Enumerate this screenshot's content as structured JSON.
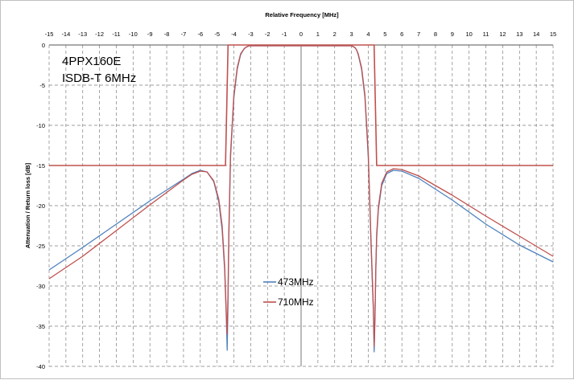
{
  "chart_data": {
    "type": "line",
    "title": "",
    "xlabel": "Relative Frequency [MHz]",
    "ylabel": "Attenuation / Return loss [dB]",
    "xlim": [
      -15,
      15
    ],
    "ylim": [
      -40,
      0
    ],
    "x_ticks": [
      "-15",
      "-14",
      "-13",
      "-12",
      "-11",
      "-10",
      "-9",
      "-8",
      "-7",
      "-6",
      "-5",
      "-4",
      "-3",
      "-2",
      "-1",
      "0",
      "1",
      "2",
      "3",
      "4",
      "5",
      "6",
      "7",
      "8",
      "9",
      "10",
      "11",
      "12",
      "13",
      "14",
      "15"
    ],
    "y_ticks": [
      "0",
      "-5",
      "-10",
      "-15",
      "-20",
      "-25",
      "-30",
      "-35",
      "-40"
    ],
    "grid": true,
    "x_axis_position": "top",
    "annotations": [
      "4PPX160E",
      "ISDB-T 6MHz"
    ],
    "legend_position": "bottom-center",
    "colors": {
      "s473": "#4f81bd",
      "s710": "#c0504d",
      "mask": "#c0504d",
      "grid": "#7f7f7f"
    },
    "series": [
      {
        "name": "473MHz",
        "x": [
          -15,
          -13,
          -11,
          -9,
          -7,
          -6.5,
          -6,
          -5.6,
          -5.2,
          -4.9,
          -4.7,
          -4.55,
          -4.45,
          -4.4,
          -4.35,
          -4.3,
          -4.2,
          -4.0,
          -3.8,
          -3.6,
          -3.4,
          -3.3,
          -3.2,
          -3.1,
          -3.0,
          -2.8,
          -2.0,
          -1.0,
          0,
          1.0,
          2.0,
          2.8,
          3.0,
          3.1,
          3.2,
          3.3,
          3.4,
          3.6,
          3.8,
          4.0,
          4.15,
          4.3,
          4.35,
          4.4,
          4.45,
          4.5,
          4.6,
          4.8,
          5.1,
          5.5,
          6.0,
          7,
          9,
          11,
          13,
          15
        ],
        "y": [
          -28.0,
          -25.2,
          -22.3,
          -19.4,
          -16.7,
          -16.0,
          -15.6,
          -15.8,
          -17.0,
          -19.5,
          -23.0,
          -28.0,
          -34.0,
          -38.0,
          -32.0,
          -24.0,
          -14.0,
          -6.5,
          -3.0,
          -1.2,
          -0.5,
          -0.3,
          -0.2,
          -0.1,
          -0.1,
          -0.1,
          -0.1,
          -0.1,
          -0.1,
          -0.1,
          -0.1,
          -0.1,
          -0.1,
          -0.2,
          -0.3,
          -0.6,
          -1.2,
          -3.0,
          -6.5,
          -14.0,
          -24.0,
          -33.0,
          -38.2,
          -34.0,
          -28.0,
          -24.0,
          -20.5,
          -17.5,
          -16.0,
          -15.6,
          -15.7,
          -16.6,
          -19.3,
          -22.3,
          -24.9,
          -27.0
        ]
      },
      {
        "name": "710MHz",
        "x": [
          -15,
          -13,
          -11,
          -9,
          -7,
          -6.5,
          -6,
          -5.6,
          -5.2,
          -4.9,
          -4.7,
          -4.55,
          -4.45,
          -4.4,
          -4.35,
          -4.3,
          -4.2,
          -4.0,
          -3.8,
          -3.6,
          -3.4,
          -3.3,
          -3.2,
          -3.1,
          -3.0,
          -2.8,
          -2.0,
          -1.0,
          0,
          1.0,
          2.0,
          2.8,
          3.0,
          3.1,
          3.2,
          3.3,
          3.4,
          3.6,
          3.8,
          4.0,
          4.15,
          4.3,
          4.35,
          4.4,
          4.45,
          4.5,
          4.6,
          4.8,
          5.1,
          5.5,
          6.0,
          7,
          9,
          11,
          13,
          15
        ],
        "y": [
          -29.1,
          -26.3,
          -23.1,
          -19.9,
          -16.8,
          -16.1,
          -15.7,
          -15.8,
          -16.9,
          -19.2,
          -22.5,
          -27.5,
          -33.5,
          -36.0,
          -31.0,
          -23.0,
          -13.5,
          -6.2,
          -2.8,
          -1.1,
          -0.5,
          -0.3,
          -0.2,
          -0.1,
          -0.1,
          -0.1,
          -0.1,
          -0.1,
          -0.1,
          -0.1,
          -0.1,
          -0.1,
          -0.1,
          -0.2,
          -0.3,
          -0.6,
          -1.1,
          -2.8,
          -6.2,
          -13.5,
          -23.5,
          -32.5,
          -37.5,
          -33.5,
          -27.5,
          -23.5,
          -20.2,
          -17.2,
          -15.8,
          -15.4,
          -15.5,
          -16.3,
          -18.7,
          -21.3,
          -23.8,
          -26.3
        ]
      },
      {
        "name": "",
        "role": "specification mask",
        "x": [
          -15,
          -4.5,
          -4.35,
          -4.35,
          4.35,
          4.35,
          4.5,
          15
        ],
        "y": [
          -15,
          -15,
          -0.3,
          0,
          0,
          -0.3,
          -15,
          -15
        ]
      }
    ],
    "legend": [
      "473MHz",
      "710MHz"
    ]
  }
}
